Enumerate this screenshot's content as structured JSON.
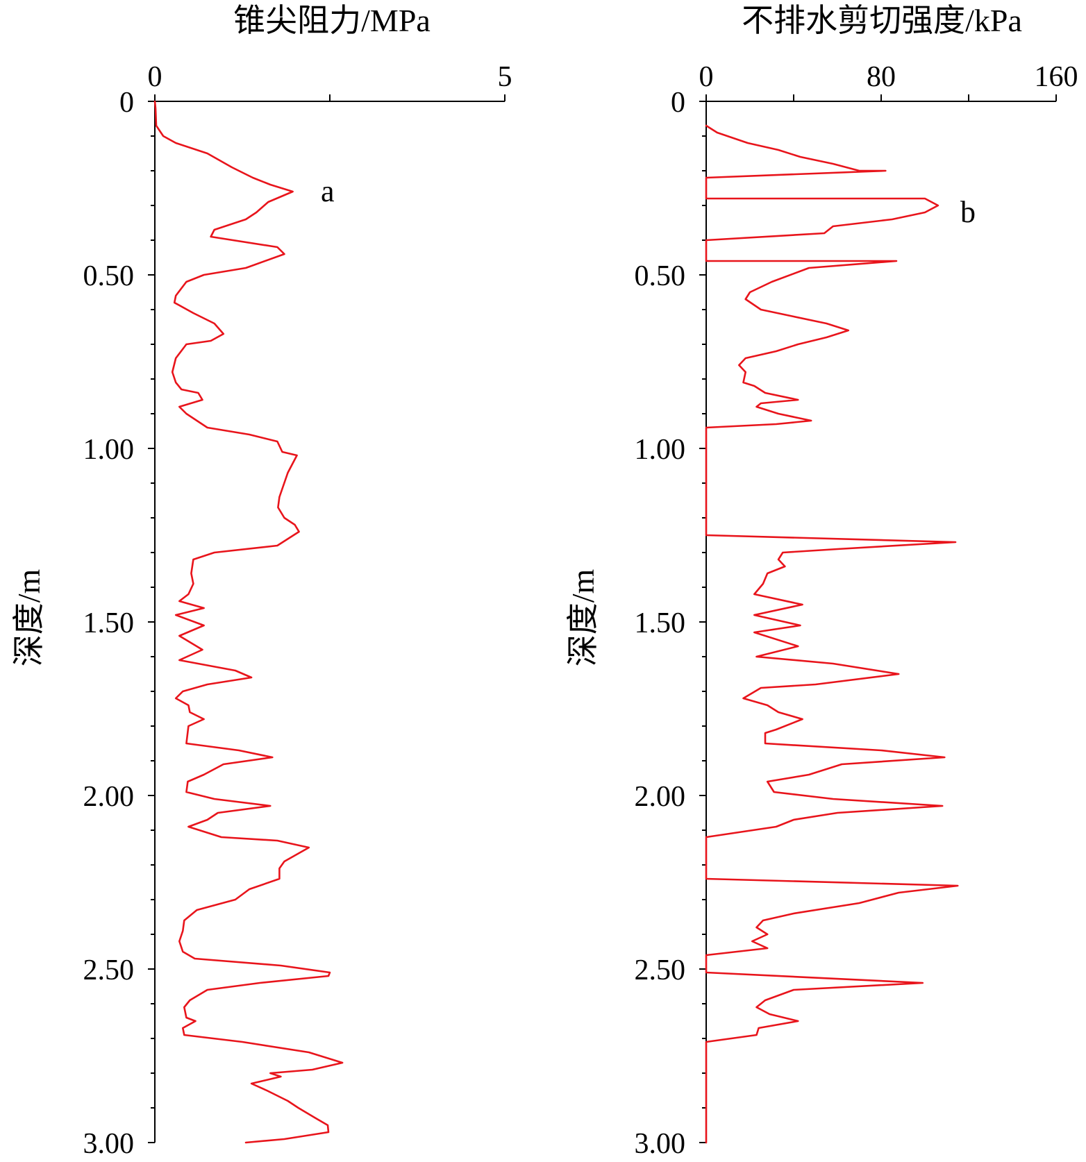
{
  "chart_data": [
    {
      "type": "line",
      "orientation": "depth-profile",
      "panel_label": "a",
      "xlabel": "锥尖阻力/MPa",
      "ylabel": "深度/m",
      "xlim": [
        0,
        5
      ],
      "ylim": [
        0,
        3.0
      ],
      "x_ticks": [
        0,
        5
      ],
      "x_tick_labels": [
        "0",
        "5"
      ],
      "x_minor_ticks": [
        2.5
      ],
      "y_ticks": [
        0,
        0.5,
        1.0,
        1.5,
        2.0,
        2.5,
        3.0
      ],
      "y_tick_labels": [
        "0",
        "0.50",
        "1.00",
        "1.50",
        "2.00",
        "2.50",
        "3.00"
      ],
      "x_axis_position": "top",
      "y_inverted": true,
      "grid": false,
      "series": [
        {
          "color": "#e8141b",
          "points": [
            [
              0.0,
              0.0
            ],
            [
              0.01,
              0.02
            ],
            [
              0.02,
              0.07
            ],
            [
              0.12,
              0.1
            ],
            [
              0.3,
              0.12
            ],
            [
              0.75,
              0.15
            ],
            [
              1.1,
              0.19
            ],
            [
              1.4,
              0.22
            ],
            [
              1.65,
              0.24
            ],
            [
              1.97,
              0.26
            ],
            [
              1.62,
              0.29
            ],
            [
              1.45,
              0.32
            ],
            [
              1.3,
              0.34
            ],
            [
              0.85,
              0.37
            ],
            [
              0.8,
              0.39
            ],
            [
              1.75,
              0.42
            ],
            [
              1.85,
              0.44
            ],
            [
              1.3,
              0.48
            ],
            [
              0.7,
              0.5
            ],
            [
              0.45,
              0.52
            ],
            [
              0.3,
              0.56
            ],
            [
              0.28,
              0.58
            ],
            [
              0.55,
              0.61
            ],
            [
              0.85,
              0.64
            ],
            [
              0.98,
              0.67
            ],
            [
              0.8,
              0.69
            ],
            [
              0.45,
              0.7
            ],
            [
              0.3,
              0.74
            ],
            [
              0.25,
              0.78
            ],
            [
              0.3,
              0.81
            ],
            [
              0.38,
              0.83
            ],
            [
              0.62,
              0.84
            ],
            [
              0.68,
              0.86
            ],
            [
              0.35,
              0.88
            ],
            [
              0.45,
              0.9
            ],
            [
              0.75,
              0.94
            ],
            [
              1.35,
              0.96
            ],
            [
              1.75,
              0.98
            ],
            [
              1.82,
              1.01
            ],
            [
              2.03,
              1.02
            ],
            [
              1.9,
              1.07
            ],
            [
              1.78,
              1.14
            ],
            [
              1.76,
              1.17
            ],
            [
              1.85,
              1.2
            ],
            [
              2.0,
              1.22
            ],
            [
              2.06,
              1.24
            ],
            [
              1.75,
              1.28
            ],
            [
              0.85,
              1.3
            ],
            [
              0.55,
              1.32
            ],
            [
              0.52,
              1.36
            ],
            [
              0.55,
              1.39
            ],
            [
              0.48,
              1.42
            ],
            [
              0.35,
              1.44
            ],
            [
              0.7,
              1.46
            ],
            [
              0.3,
              1.48
            ],
            [
              0.7,
              1.51
            ],
            [
              0.35,
              1.54
            ],
            [
              0.68,
              1.58
            ],
            [
              0.35,
              1.61
            ],
            [
              1.15,
              1.64
            ],
            [
              1.38,
              1.66
            ],
            [
              0.75,
              1.68
            ],
            [
              0.4,
              1.7
            ],
            [
              0.3,
              1.72
            ],
            [
              0.48,
              1.74
            ],
            [
              0.5,
              1.76
            ],
            [
              0.7,
              1.78
            ],
            [
              0.48,
              1.8
            ],
            [
              0.45,
              1.85
            ],
            [
              1.2,
              1.87
            ],
            [
              1.68,
              1.89
            ],
            [
              0.98,
              1.91
            ],
            [
              0.7,
              1.94
            ],
            [
              0.47,
              1.96
            ],
            [
              0.45,
              1.99
            ],
            [
              0.85,
              2.01
            ],
            [
              1.65,
              2.03
            ],
            [
              0.9,
              2.05
            ],
            [
              0.75,
              2.07
            ],
            [
              0.48,
              2.09
            ],
            [
              0.95,
              2.12
            ],
            [
              1.75,
              2.13
            ],
            [
              2.2,
              2.15
            ],
            [
              1.85,
              2.19
            ],
            [
              1.78,
              2.21
            ],
            [
              1.78,
              2.24
            ],
            [
              1.35,
              2.27
            ],
            [
              1.15,
              2.3
            ],
            [
              0.6,
              2.33
            ],
            [
              0.42,
              2.36
            ],
            [
              0.4,
              2.39
            ],
            [
              0.35,
              2.42
            ],
            [
              0.4,
              2.45
            ],
            [
              0.57,
              2.47
            ],
            [
              1.8,
              2.49
            ],
            [
              2.5,
              2.51
            ],
            [
              2.48,
              2.52
            ],
            [
              1.5,
              2.54
            ],
            [
              0.75,
              2.56
            ],
            [
              0.5,
              2.59
            ],
            [
              0.42,
              2.61
            ],
            [
              0.45,
              2.64
            ],
            [
              0.58,
              2.65
            ],
            [
              0.4,
              2.67
            ],
            [
              0.42,
              2.69
            ],
            [
              1.25,
              2.71
            ],
            [
              2.2,
              2.74
            ],
            [
              2.68,
              2.77
            ],
            [
              2.25,
              2.79
            ],
            [
              1.65,
              2.8
            ],
            [
              1.8,
              2.81
            ],
            [
              1.38,
              2.83
            ],
            [
              1.6,
              2.85
            ],
            [
              1.9,
              2.88
            ],
            [
              2.05,
              2.9
            ],
            [
              2.3,
              2.93
            ],
            [
              2.47,
              2.95
            ],
            [
              2.48,
              2.97
            ],
            [
              1.85,
              2.99
            ],
            [
              1.3,
              3.0
            ]
          ]
        }
      ]
    },
    {
      "type": "line",
      "orientation": "depth-profile",
      "panel_label": "b",
      "xlabel": "不排水剪切强度/kPa",
      "ylabel": "深度/m",
      "xlim": [
        0,
        160
      ],
      "ylim": [
        0,
        3.0
      ],
      "x_ticks": [
        0,
        80,
        160
      ],
      "x_tick_labels": [
        "0",
        "80",
        "160"
      ],
      "x_minor_ticks": [
        40,
        120
      ],
      "y_ticks": [
        0,
        0.5,
        1.0,
        1.5,
        2.0,
        2.5,
        3.0
      ],
      "y_tick_labels": [
        "0",
        "0.50",
        "1.00",
        "1.50",
        "2.00",
        "2.50",
        "3.00"
      ],
      "x_axis_position": "top",
      "y_inverted": true,
      "grid": false,
      "series": [
        {
          "color": "#e8141b",
          "points": [
            [
              0,
              0.07
            ],
            [
              5,
              0.09
            ],
            [
              19,
              0.12
            ],
            [
              33,
              0.14
            ],
            [
              43,
              0.16
            ],
            [
              58,
              0.18
            ],
            [
              70,
              0.2
            ],
            [
              82,
              0.2
            ],
            [
              0,
              0.22
            ],
            [
              0,
              0.28
            ],
            [
              100,
              0.28
            ],
            [
              106,
              0.3
            ],
            [
              100,
              0.32
            ],
            [
              85,
              0.34
            ],
            [
              58,
              0.36
            ],
            [
              54,
              0.38
            ],
            [
              0,
              0.4
            ],
            [
              0,
              0.46
            ],
            [
              87,
              0.46
            ],
            [
              47,
              0.48
            ],
            [
              30,
              0.52
            ],
            [
              20,
              0.55
            ],
            [
              18,
              0.57
            ],
            [
              25,
              0.6
            ],
            [
              40,
              0.62
            ],
            [
              55,
              0.64
            ],
            [
              65,
              0.66
            ],
            [
              55,
              0.68
            ],
            [
              42,
              0.7
            ],
            [
              32,
              0.72
            ],
            [
              18,
              0.74
            ],
            [
              15,
              0.76
            ],
            [
              18,
              0.78
            ],
            [
              17,
              0.81
            ],
            [
              22,
              0.82
            ],
            [
              27,
              0.84
            ],
            [
              42,
              0.86
            ],
            [
              25,
              0.87
            ],
            [
              23,
              0.88
            ],
            [
              33,
              0.9
            ],
            [
              48,
              0.92
            ],
            [
              32,
              0.93
            ],
            [
              0,
              0.94
            ],
            [
              0,
              1.25
            ],
            [
              114,
              1.27
            ],
            [
              60,
              1.29
            ],
            [
              35,
              1.3
            ],
            [
              33,
              1.32
            ],
            [
              36,
              1.34
            ],
            [
              28,
              1.36
            ],
            [
              26,
              1.39
            ],
            [
              22,
              1.42
            ],
            [
              44,
              1.45
            ],
            [
              22,
              1.48
            ],
            [
              43,
              1.51
            ],
            [
              22,
              1.53
            ],
            [
              42,
              1.57
            ],
            [
              23,
              1.6
            ],
            [
              58,
              1.62
            ],
            [
              88,
              1.65
            ],
            [
              50,
              1.68
            ],
            [
              25,
              1.69
            ],
            [
              17,
              1.72
            ],
            [
              28,
              1.74
            ],
            [
              33,
              1.76
            ],
            [
              44,
              1.78
            ],
            [
              32,
              1.81
            ],
            [
              27,
              1.82
            ],
            [
              27,
              1.85
            ],
            [
              80,
              1.87
            ],
            [
              109,
              1.89
            ],
            [
              62,
              1.91
            ],
            [
              47,
              1.94
            ],
            [
              28,
              1.96
            ],
            [
              31,
              1.99
            ],
            [
              58,
              2.01
            ],
            [
              108,
              2.03
            ],
            [
              60,
              2.05
            ],
            [
              40,
              2.07
            ],
            [
              32,
              2.09
            ],
            [
              0,
              2.12
            ],
            [
              0,
              2.24
            ],
            [
              115,
              2.26
            ],
            [
              88,
              2.28
            ],
            [
              70,
              2.31
            ],
            [
              40,
              2.34
            ],
            [
              26,
              2.36
            ],
            [
              23,
              2.38
            ],
            [
              28,
              2.4
            ],
            [
              21,
              2.42
            ],
            [
              28,
              2.44
            ],
            [
              0,
              2.46
            ],
            [
              0,
              2.51
            ],
            [
              99,
              2.54
            ],
            [
              40,
              2.56
            ],
            [
              27,
              2.59
            ],
            [
              23,
              2.61
            ],
            [
              29,
              2.63
            ],
            [
              42,
              2.65
            ],
            [
              24,
              2.67
            ],
            [
              23,
              2.69
            ],
            [
              0,
              2.71
            ],
            [
              0,
              3.0
            ]
          ]
        }
      ]
    }
  ]
}
